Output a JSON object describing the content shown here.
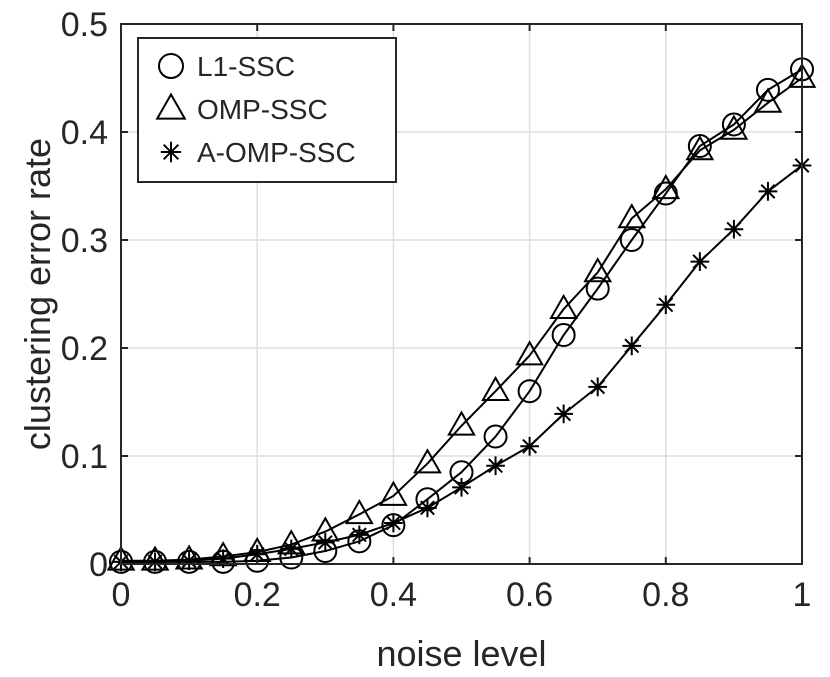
{
  "chart_data": {
    "type": "line",
    "title": "",
    "xlabel": "noise level",
    "ylabel": "clustering error rate",
    "xlim": [
      0,
      1
    ],
    "ylim": [
      0,
      0.5
    ],
    "grid": true,
    "legend_position": "top-left",
    "x_ticks": [
      "0",
      "0.2",
      "0.4",
      "0.6",
      "0.8",
      "1"
    ],
    "y_ticks": [
      "0",
      "0.1",
      "0.2",
      "0.3",
      "0.4",
      "0.5"
    ],
    "x": [
      0,
      0.05,
      0.1,
      0.15,
      0.2,
      0.25,
      0.3,
      0.35,
      0.4,
      0.45,
      0.5,
      0.55,
      0.6,
      0.65,
      0.7,
      0.75,
      0.8,
      0.85,
      0.9,
      0.95,
      1.0
    ],
    "series": [
      {
        "name": "L1-SSC",
        "marker": "circle",
        "values": [
          0.002,
          0.002,
          0.002,
          0.002,
          0.003,
          0.006,
          0.012,
          0.021,
          0.036,
          0.06,
          0.085,
          0.118,
          0.16,
          0.212,
          0.255,
          0.3,
          0.343,
          0.387,
          0.407,
          0.439,
          0.458
        ]
      },
      {
        "name": "OMP-SSC",
        "marker": "triangle",
        "values": [
          0.003,
          0.003,
          0.004,
          0.007,
          0.011,
          0.018,
          0.03,
          0.046,
          0.063,
          0.093,
          0.128,
          0.16,
          0.193,
          0.236,
          0.27,
          0.32,
          0.347,
          0.383,
          0.402,
          0.427,
          0.45
        ]
      },
      {
        "name": "A-OMP-SSC",
        "marker": "asterisk",
        "values": [
          0.002,
          0.002,
          0.003,
          0.005,
          0.009,
          0.014,
          0.02,
          0.027,
          0.038,
          0.052,
          0.071,
          0.091,
          0.109,
          0.139,
          0.164,
          0.202,
          0.24,
          0.28,
          0.31,
          0.345,
          0.369
        ]
      }
    ]
  }
}
